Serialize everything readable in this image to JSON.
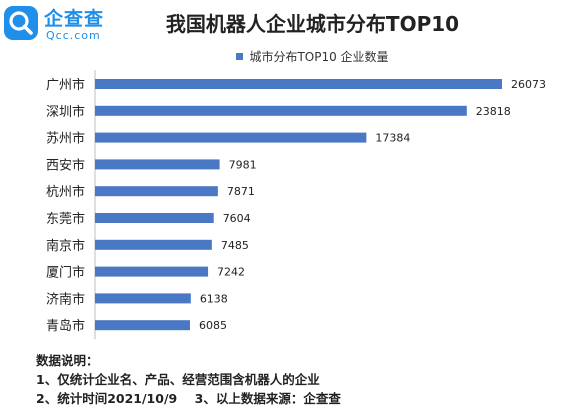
{
  "logo": {
    "brand_name": "企查查",
    "url": "Qcc.com",
    "brand_color": "#1f8fea"
  },
  "chart_data": {
    "type": "bar",
    "orientation": "horizontal",
    "title": "我国机器人企业城市分布TOP10",
    "categories": [
      "广州市",
      "深圳市",
      "苏州市",
      "西安市",
      "杭州市",
      "东莞市",
      "南京市",
      "厦门市",
      "济南市",
      "青岛市"
    ],
    "series": [
      {
        "name": "城市分布TOP10 企业数量",
        "values": [
          26073,
          23818,
          17384,
          7981,
          7871,
          7604,
          7485,
          7242,
          6138,
          6085
        ],
        "color": "#4a78c5"
      }
    ],
    "legend_position": "top",
    "data_labels": true,
    "grid": false,
    "xlim": [
      0,
      30000
    ]
  },
  "notes": {
    "heading": "数据说明：",
    "line1": "1、仅统计企业名、产品、经营范围含机器人的企业",
    "line2": "2、统计时间2021/10/9    3、以上数据来源：企查查"
  }
}
